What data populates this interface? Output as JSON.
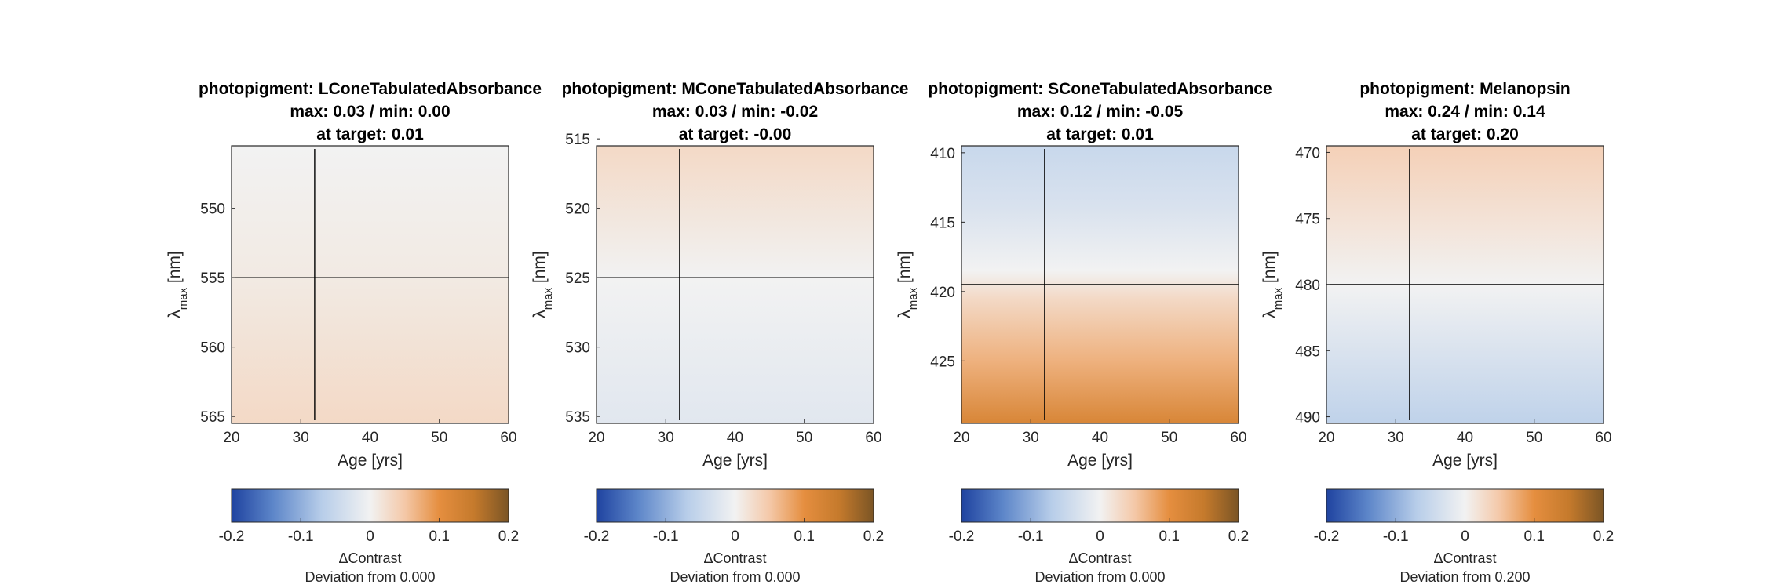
{
  "chart_data": [
    {
      "type": "heatmap",
      "title": [
        "photopigment: LConeTabulatedAbsorbance",
        "max: 0.03 / min: 0.00",
        "at target: 0.01"
      ],
      "xlabel": "Age [yrs]",
      "ylabel": "λmax [nm]",
      "xlim": [
        20,
        60
      ],
      "ylim": [
        545.5,
        565.5
      ],
      "y_reversed": true,
      "xticks": [
        20,
        30,
        40,
        50,
        60
      ],
      "yticks": [
        550,
        555,
        560,
        565
      ],
      "target": {
        "x": 32,
        "y": 555
      },
      "value_rows": {
        "y": [
          545.5,
          555,
          565.5
        ],
        "values": [
          0.0,
          0.01,
          0.03
        ]
      },
      "colorbar": {
        "min": -0.2,
        "max": 0.2,
        "ticks": [
          "-0.2",
          "-0.1",
          "0",
          "0.1",
          "0.2"
        ],
        "label": "ΔContrast",
        "sublabel": "Deviation from 0.000",
        "center": 0.0
      }
    },
    {
      "type": "heatmap",
      "title": [
        "photopigment: MConeTabulatedAbsorbance",
        "max: 0.03 / min: -0.02",
        "at target: -0.00"
      ],
      "xlabel": "Age [yrs]",
      "ylabel": "λmax [nm]",
      "xlim": [
        20,
        60
      ],
      "ylim": [
        515.5,
        535.5
      ],
      "y_reversed": true,
      "xticks": [
        20,
        30,
        40,
        50,
        60
      ],
      "yticks": [
        515,
        520,
        525,
        530,
        535
      ],
      "target": {
        "x": 32,
        "y": 525
      },
      "value_rows": {
        "y": [
          515.5,
          525,
          535.5
        ],
        "values": [
          0.03,
          0.0,
          -0.02
        ]
      },
      "colorbar": {
        "min": -0.2,
        "max": 0.2,
        "ticks": [
          "-0.2",
          "-0.1",
          "0",
          "0.1",
          "0.2"
        ],
        "label": "ΔContrast",
        "sublabel": "Deviation from 0.000",
        "center": 0.0
      }
    },
    {
      "type": "heatmap",
      "title": [
        "photopigment: SConeTabulatedAbsorbance",
        "max: 0.12 / min: -0.05",
        "at target: 0.01"
      ],
      "xlabel": "Age [yrs]",
      "ylabel": "λmax [nm]",
      "xlim": [
        20,
        60
      ],
      "ylim": [
        409.5,
        429.5
      ],
      "y_reversed": true,
      "xticks": [
        20,
        30,
        40,
        50,
        60
      ],
      "yticks": [
        410,
        415,
        420,
        425
      ],
      "target": {
        "x": 32,
        "y": 419.5
      },
      "value_rows": {
        "y": [
          409.5,
          414,
          418.5,
          420.5,
          425,
          429.5
        ],
        "values": [
          -0.05,
          -0.03,
          0.0,
          0.03,
          0.07,
          0.12
        ]
      },
      "colorbar": {
        "min": -0.2,
        "max": 0.2,
        "ticks": [
          "-0.2",
          "-0.1",
          "0",
          "0.1",
          "0.2"
        ],
        "label": "ΔContrast",
        "sublabel": "Deviation from 0.000",
        "center": 0.0
      }
    },
    {
      "type": "heatmap",
      "title": [
        "photopigment: Melanopsin",
        "max: 0.24 / min: 0.14",
        "at target: 0.20"
      ],
      "xlabel": "Age [yrs]",
      "ylabel": "λmax [nm]",
      "xlim": [
        20,
        60
      ],
      "ylim": [
        469.5,
        490.5
      ],
      "y_reversed": true,
      "xticks": [
        20,
        30,
        40,
        50,
        60
      ],
      "yticks": [
        470,
        475,
        480,
        485,
        490
      ],
      "target": {
        "x": 32,
        "y": 480
      },
      "value_rows": {
        "y": [
          469.5,
          480,
          490.5
        ],
        "values": [
          0.24,
          0.2,
          0.14
        ]
      },
      "colorbar": {
        "min": -0.2,
        "max": 0.2,
        "ticks": [
          "-0.2",
          "-0.1",
          "0",
          "0.1",
          "0.2"
        ],
        "label": "ΔContrast",
        "sublabel": "Deviation from 0.200",
        "center": 0.2
      }
    }
  ],
  "colormap": {
    "stops": [
      {
        "v": -0.2,
        "color": "#2146a0"
      },
      {
        "v": -0.1,
        "color": "#8db0dc"
      },
      {
        "v": 0.0,
        "color": "#f2f2f2"
      },
      {
        "v": 0.1,
        "color": "#e79a55"
      },
      {
        "v": 0.2,
        "color": "#7d5524"
      }
    ],
    "detail_stops": [
      {
        "v": -0.2,
        "color": "#1f43a0"
      },
      {
        "v": -0.14,
        "color": "#5d86c9"
      },
      {
        "v": -0.07,
        "color": "#b7cde9"
      },
      {
        "v": 0.0,
        "color": "#f2f2f2"
      },
      {
        "v": 0.05,
        "color": "#f4c8a8"
      },
      {
        "v": 0.1,
        "color": "#e58e3f"
      },
      {
        "v": 0.15,
        "color": "#c57a2c"
      },
      {
        "v": 0.2,
        "color": "#7b5525"
      }
    ]
  }
}
